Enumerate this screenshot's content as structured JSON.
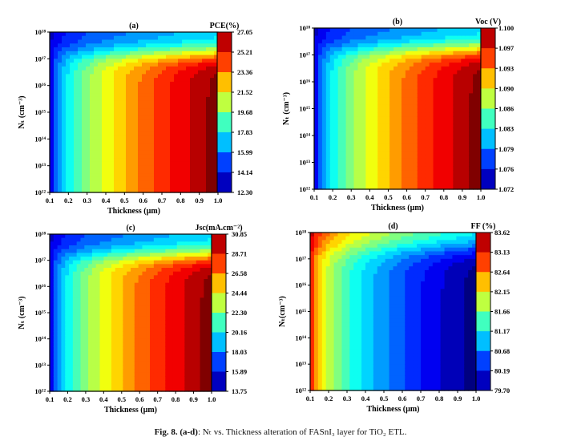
{
  "chart_data": [
    {
      "type": "heatmap",
      "panel_label": "(a)",
      "colorbar_title": "PCE(%)",
      "colorbar_ticks": [
        "27.05",
        "25.21",
        "23.36",
        "21.52",
        "19.68",
        "17.83",
        "15.99",
        "14.14",
        "12.30"
      ],
      "zlim": [
        12.3,
        27.05
      ],
      "xlabel": "Thickness (µm)",
      "ylabel": "Nₜ (cm⁻³)",
      "x_ticks": [
        "0.1",
        "0.2",
        "0.3",
        "0.4",
        "0.5",
        "0.6",
        "0.7",
        "0.8",
        "0.9",
        "1.0"
      ],
      "y_ticks": [
        "10¹²",
        "10¹³",
        "10¹⁴",
        "10¹⁵",
        "10¹⁶",
        "10¹⁷",
        "10¹⁸"
      ],
      "xlim": [
        0.1,
        1.0
      ],
      "ylim_log10": [
        12,
        18
      ],
      "colormap": "jet",
      "trend": "increases with thickness, decreases at high defect density"
    },
    {
      "type": "heatmap",
      "panel_label": "(b)",
      "colorbar_title": "Voc (V)",
      "colorbar_ticks": [
        "1.100",
        "1.097",
        "1.093",
        "1.090",
        "1.086",
        "1.083",
        "1.079",
        "1.076",
        "1.072"
      ],
      "zlim": [
        1.072,
        1.1
      ],
      "xlabel": "Thickness (µm)",
      "ylabel": "Nₜ (cm⁻³)",
      "x_ticks": [
        "0.1",
        "0.2",
        "0.3",
        "0.4",
        "0.5",
        "0.6",
        "0.7",
        "0.8",
        "0.9",
        "1.0"
      ],
      "y_ticks": [
        "10¹²",
        "10¹³",
        "10¹⁴",
        "10¹⁵",
        "10¹⁶",
        "10¹⁷",
        "10¹⁸"
      ],
      "xlim": [
        0.1,
        1.0
      ],
      "ylim_log10": [
        12,
        18
      ],
      "colormap": "jet",
      "trend": "increases with thickness, decreases at high defect density"
    },
    {
      "type": "heatmap",
      "panel_label": "(c)",
      "colorbar_title": "Jsc(mA.cm⁻²)",
      "colorbar_ticks": [
        "30.85",
        "28.71",
        "26.58",
        "24.44",
        "22.30",
        "20.16",
        "18.03",
        "15.89",
        "13.75"
      ],
      "zlim": [
        13.75,
        30.85
      ],
      "xlabel": "Thickness (µm)",
      "ylabel": "Nₜ (cm⁻³)",
      "x_ticks": [
        "0.1",
        "0.2",
        "0.3",
        "0.4",
        "0.5",
        "0.6",
        "0.7",
        "0.8",
        "0.9",
        "1.0"
      ],
      "y_ticks": [
        "10¹²",
        "10¹³",
        "10¹⁴",
        "10¹⁵",
        "10¹⁶",
        "10¹⁷",
        "10¹⁸"
      ],
      "xlim": [
        0.1,
        1.0
      ],
      "ylim_log10": [
        12,
        18
      ],
      "colormap": "jet",
      "trend": "increases with thickness, decreases at high defect density"
    },
    {
      "type": "heatmap",
      "panel_label": "(d)",
      "colorbar_title": "FF (%)",
      "colorbar_ticks": [
        "83.62",
        "83.13",
        "82.64",
        "82.15",
        "81.66",
        "81.17",
        "80.68",
        "80.19",
        "79.70"
      ],
      "zlim": [
        79.7,
        83.62
      ],
      "xlabel": "Thickness (µm)",
      "ylabel": "Nₜ(cm⁻³)",
      "x_ticks": [
        "0.1",
        "0.2",
        "0.3",
        "0.4",
        "0.5",
        "0.6",
        "0.7",
        "0.8",
        "0.9",
        "1.0"
      ],
      "y_ticks": [
        "10¹²",
        "10¹³",
        "10¹⁴",
        "10¹⁵",
        "10¹⁶",
        "10¹⁷",
        "10¹⁸"
      ],
      "xlim": [
        0.1,
        1.0
      ],
      "ylim_log10": [
        12,
        18
      ],
      "colormap": "jet",
      "trend": "decreases with thickness, recovers at high defect density"
    }
  ],
  "caption": {
    "label": "Fig. 8.",
    "panels": "(a-d)",
    "text": ": Nₜ vs. Thickness alteration of FASnI₃ layer for TiO₂ ETL."
  }
}
